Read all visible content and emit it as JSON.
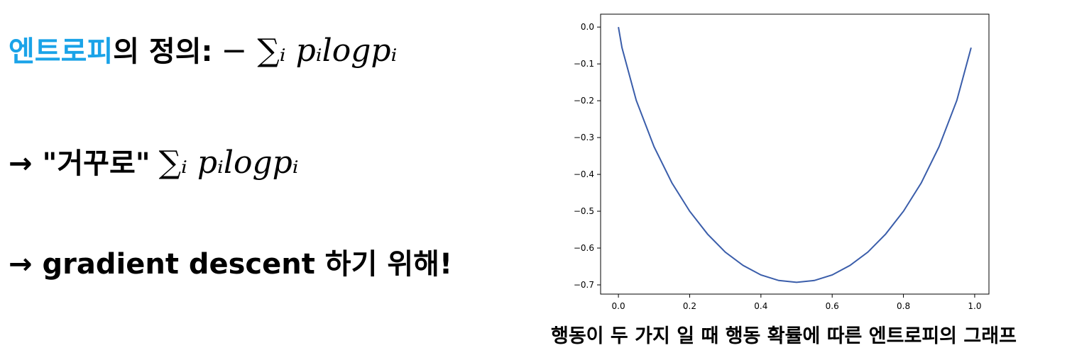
{
  "slide": {
    "line1": {
      "highlight": "엔트로피",
      "rest": "의 정의:",
      "formula": "− ∑ᵢ pᵢlogpᵢ"
    },
    "line2": {
      "arrow": "→",
      "text": "\"거꾸로\"",
      "formula": "∑ᵢ pᵢlogpᵢ"
    },
    "line3": {
      "arrow": "→",
      "text": "gradient descent 하기 위해!"
    },
    "caption": "행동이 두 가지 일 때 행동 확률에 따른 엔트로피의 그래프",
    "accent_color": "#1aa3e8"
  },
  "chart_data": {
    "type": "line",
    "title": "",
    "xlabel": "",
    "ylabel": "",
    "xlim": [
      -0.05,
      1.04
    ],
    "ylim": [
      -0.725,
      0.035
    ],
    "xticks": [
      0.0,
      0.2,
      0.4,
      0.6,
      0.8,
      1.0
    ],
    "xtick_labels": [
      "0.0",
      "0.2",
      "0.4",
      "0.6",
      "0.8",
      "1.0"
    ],
    "yticks": [
      0.0,
      -0.1,
      -0.2,
      -0.3,
      -0.4,
      -0.5,
      -0.6,
      -0.7
    ],
    "ytick_labels": [
      "0.0",
      "−0.1",
      "−0.2",
      "−0.3",
      "−0.4",
      "−0.5",
      "−0.6",
      "−0.7"
    ],
    "grid": false,
    "series_color": "#3a5daa",
    "x": [
      0.0,
      0.01,
      0.05,
      0.1,
      0.15,
      0.2,
      0.25,
      0.3,
      0.35,
      0.4,
      0.45,
      0.5,
      0.55,
      0.6,
      0.65,
      0.7,
      0.75,
      0.8,
      0.85,
      0.9,
      0.95,
      0.99
    ],
    "y": [
      0.0,
      -0.056,
      -0.199,
      -0.325,
      -0.423,
      -0.5,
      -0.562,
      -0.611,
      -0.647,
      -0.673,
      -0.688,
      -0.693,
      -0.688,
      -0.673,
      -0.647,
      -0.611,
      -0.562,
      -0.5,
      -0.423,
      -0.325,
      -0.199,
      -0.056
    ]
  }
}
